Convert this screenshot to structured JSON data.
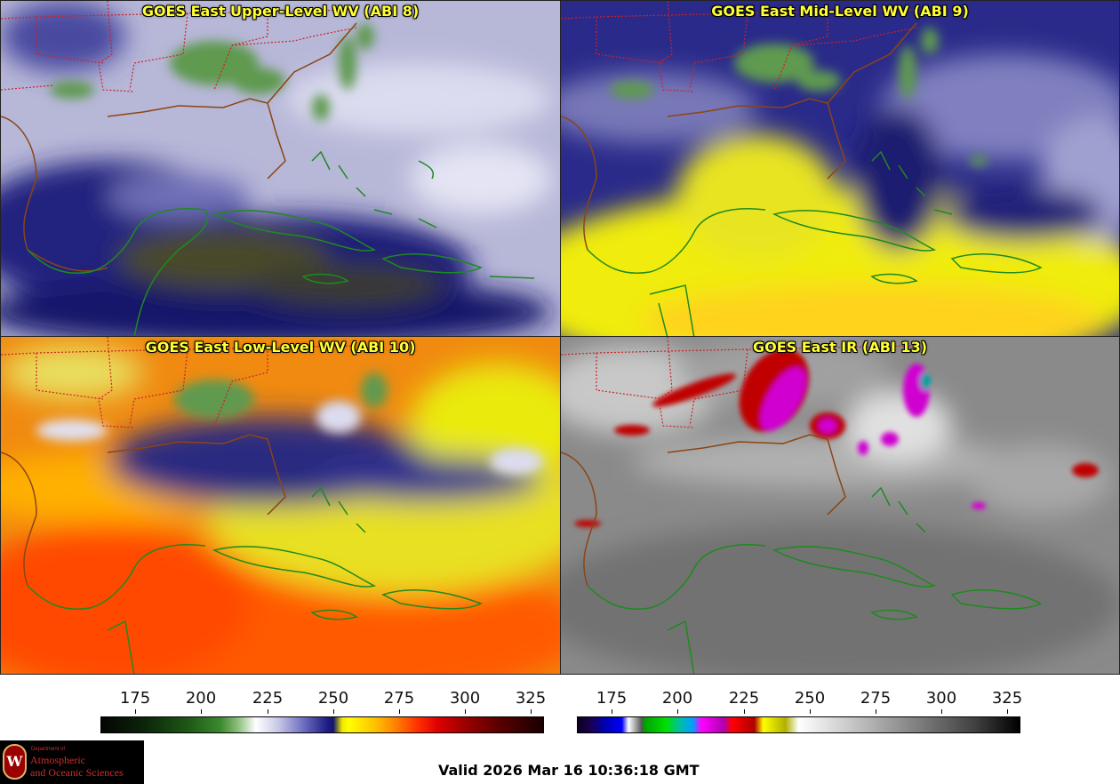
{
  "panels": [
    {
      "id": "p1",
      "title": "GOES East Upper-Level WV (ABI 8)"
    },
    {
      "id": "p2",
      "title": "GOES East Mid-Level WV (ABI 9)"
    },
    {
      "id": "p3",
      "title": "GOES East Low-Level WV (ABI 10)"
    },
    {
      "id": "p4",
      "title": "GOES East IR (ABI 13)"
    }
  ],
  "colorbars": {
    "wv": {
      "ticks": [
        "175",
        "200",
        "225",
        "250",
        "275",
        "300",
        "325"
      ]
    },
    "ir": {
      "ticks": [
        "175",
        "200",
        "225",
        "250",
        "275",
        "300",
        "325"
      ]
    }
  },
  "logo": {
    "seal_letter": "W",
    "department": "Department of",
    "line1": "Atmospheric",
    "line2": "and Oceanic Sciences"
  },
  "valid_time": "Valid 2026 Mar 16 10:36:18 GMT"
}
